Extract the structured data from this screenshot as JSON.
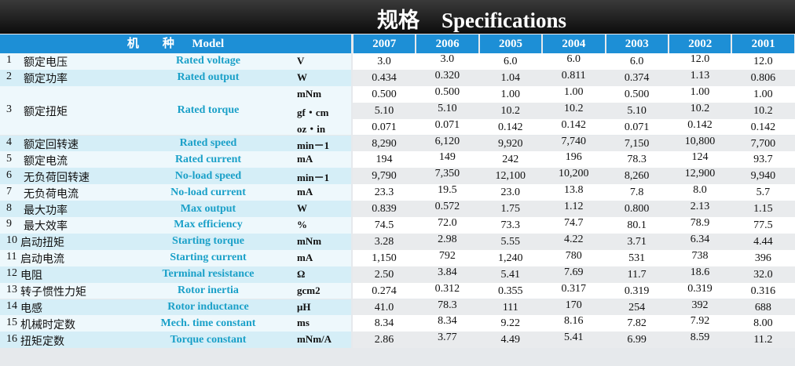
{
  "header": {
    "title_cn": "规格",
    "title_en": "Specifications"
  },
  "table": {
    "model_label_cn": "机　　种",
    "model_label_en": "Model",
    "models": [
      "2007",
      "2006",
      "2005",
      "2004",
      "2003",
      "2002",
      "2001"
    ],
    "rows": [
      {
        "no": "1",
        "cn": "额定电压",
        "en": "Rated voltage",
        "units": [
          "V"
        ],
        "values": [
          [
            "3.0",
            "3.0",
            "6.0",
            "6.0",
            "6.0",
            "12.0",
            "12.0"
          ]
        ]
      },
      {
        "no": "2",
        "cn": "额定功率",
        "en": "Rated output",
        "units": [
          "W"
        ],
        "values": [
          [
            "0.434",
            "0.320",
            "1.04",
            "0.811",
            "0.374",
            "1.13",
            "0.806"
          ]
        ]
      },
      {
        "no": "3",
        "cn": "额定扭矩",
        "en": "Rated torque",
        "units": [
          "mNm",
          "gf・cm",
          "oz・in"
        ],
        "values": [
          [
            "0.500",
            "0.500",
            "1.00",
            "1.00",
            "0.500",
            "1.00",
            "1.00"
          ],
          [
            "5.10",
            "5.10",
            "10.2",
            "10.2",
            "5.10",
            "10.2",
            "10.2"
          ],
          [
            "0.071",
            "0.071",
            "0.142",
            "0.142",
            "0.071",
            "0.142",
            "0.142"
          ]
        ]
      },
      {
        "no": "4",
        "cn": "额定回转速",
        "en": "Rated speed",
        "units": [
          "min－1"
        ],
        "values": [
          [
            "8,290",
            "6,120",
            "9,920",
            "7,740",
            "7,150",
            "10,800",
            "7,700"
          ]
        ]
      },
      {
        "no": "5",
        "cn": "额定电流",
        "en": "Rated current",
        "units": [
          "mA"
        ],
        "values": [
          [
            "194",
            "149",
            "242",
            "196",
            "78.3",
            "124",
            "93.7"
          ]
        ]
      },
      {
        "no": "6",
        "cn": "无负荷回转速",
        "en": "No-load speed",
        "units": [
          "min－1"
        ],
        "values": [
          [
            "9,790",
            "7,350",
            "12,100",
            "10,200",
            "8,260",
            "12,900",
            "9,940"
          ]
        ]
      },
      {
        "no": "7",
        "cn": "无负荷电流",
        "en": "No-load current",
        "units": [
          "mA"
        ],
        "values": [
          [
            "23.3",
            "19.5",
            "23.0",
            "13.8",
            "7.8",
            "8.0",
            "5.7"
          ]
        ]
      },
      {
        "no": "8",
        "cn": "最大功率",
        "en": "Max output",
        "units": [
          "W"
        ],
        "values": [
          [
            "0.839",
            "0.572",
            "1.75",
            "1.12",
            "0.800",
            "2.13",
            "1.15"
          ]
        ]
      },
      {
        "no": "9",
        "cn": "最大效率",
        "en": "Max efficiency",
        "units": [
          "%"
        ],
        "values": [
          [
            "74.5",
            "72.0",
            "73.3",
            "74.7",
            "80.1",
            "78.9",
            "77.5"
          ]
        ]
      },
      {
        "no": "10",
        "cn": "启动扭矩",
        "en": "Starting torque",
        "units": [
          "mNm"
        ],
        "values": [
          [
            "3.28",
            "2.98",
            "5.55",
            "4.22",
            "3.71",
            "6.34",
            "4.44"
          ]
        ]
      },
      {
        "no": "11",
        "cn": "启动电流",
        "en": "Starting current",
        "units": [
          "mA"
        ],
        "values": [
          [
            "1,150",
            "792",
            "1,240",
            "780",
            "531",
            "738",
            "396"
          ]
        ]
      },
      {
        "no": "12",
        "cn": "电阻",
        "en": "Terminal resistance",
        "units": [
          "Ω"
        ],
        "values": [
          [
            "2.50",
            "3.84",
            "5.41",
            "7.69",
            "11.7",
            "18.6",
            "32.0"
          ]
        ]
      },
      {
        "no": "13",
        "cn": "转子惯性力矩",
        "en": "Rotor inertia",
        "units": [
          "gcm2"
        ],
        "values": [
          [
            "0.274",
            "0.312",
            "0.355",
            "0.317",
            "0.319",
            "0.319",
            "0.316"
          ]
        ]
      },
      {
        "no": "14",
        "cn": "电感",
        "en": "Rotor inductance",
        "units": [
          "μH"
        ],
        "values": [
          [
            "41.0",
            "78.3",
            "111",
            "170",
            "254",
            "392",
            "688"
          ]
        ]
      },
      {
        "no": "15",
        "cn": "机械时定数",
        "en": "Mech. time constant",
        "units": [
          "ms"
        ],
        "values": [
          [
            "8.34",
            "8.34",
            "9.22",
            "8.16",
            "7.82",
            "7.92",
            "8.00"
          ]
        ]
      },
      {
        "no": "16",
        "cn": "扭矩定数",
        "en": "Torque constant",
        "units": [
          "mNm/A"
        ],
        "values": [
          [
            "2.86",
            "3.77",
            "4.49",
            "5.41",
            "6.99",
            "8.59",
            "11.2"
          ]
        ]
      }
    ]
  }
}
